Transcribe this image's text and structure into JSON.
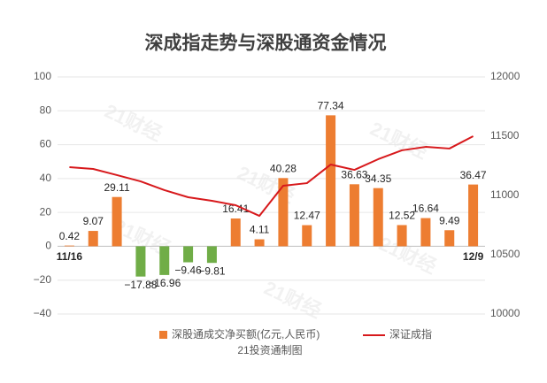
{
  "chart_data": {
    "type": "bar",
    "title": "深成指走势与深股通资金情况",
    "categories": [
      "11/16",
      null,
      null,
      null,
      null,
      null,
      null,
      null,
      null,
      null,
      null,
      null,
      null,
      null,
      null,
      null,
      null,
      "12/9"
    ],
    "series": [
      {
        "name": "深股通成交净买额(亿元,人民币)",
        "color": "#ed7d31",
        "negative_color": "#70ad47",
        "values": [
          0.42,
          9.07,
          29.11,
          -17.88,
          -16.96,
          -9.46,
          -9.81,
          16.41,
          4.11,
          40.28,
          12.47,
          77.34,
          36.63,
          34.35,
          12.52,
          16.64,
          9.49,
          36.47
        ],
        "value_labels": [
          "0.42",
          "9.07",
          "29.11",
          "−17.88",
          "−16.96",
          "−9.46",
          "−9.81",
          "16.41",
          "4.11",
          "40.28",
          "12.47",
          "77.34",
          "36.63",
          "34.35",
          "12.52",
          "16.64",
          "9.49",
          "36.47"
        ]
      },
      {
        "name": "深证成指",
        "color": "#d7191c",
        "type": "line",
        "axis": "y2",
        "values": [
          11239,
          11224,
          11172,
          11119,
          11045,
          10985,
          10955,
          10918,
          10828,
          11082,
          11104,
          11261,
          11216,
          11306,
          11381,
          11410,
          11396,
          11500
        ]
      }
    ],
    "ylim": [
      -40,
      100
    ],
    "yticks": [
      {
        "value": -40,
        "label": "−40"
      },
      {
        "value": -20,
        "label": "−20"
      },
      0,
      20,
      40,
      60,
      80,
      100
    ],
    "y2lim": [
      10000,
      12000
    ],
    "y2ticks": [
      10000,
      10500,
      11000,
      11500,
      12000
    ],
    "grid": true,
    "legend": "bottom",
    "source": "21投资通制图",
    "watermark": "21财经"
  }
}
